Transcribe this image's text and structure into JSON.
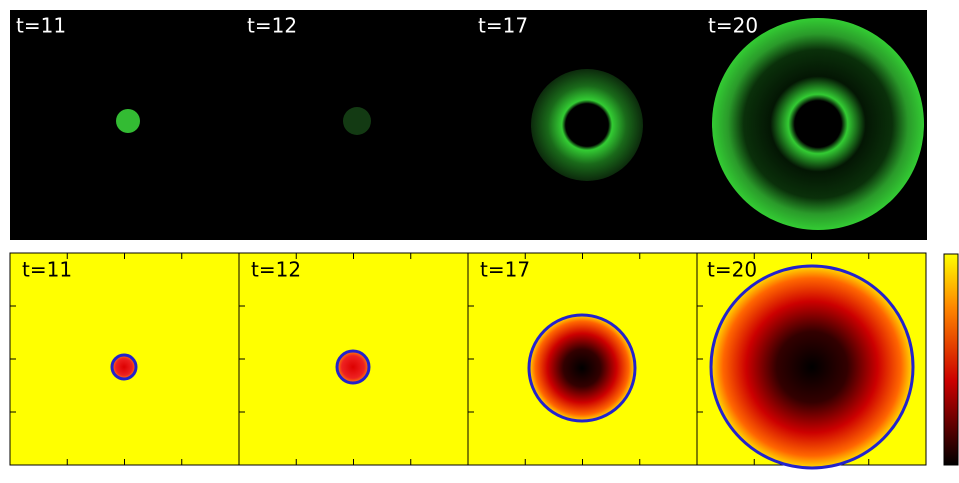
{
  "top": {
    "panels": [
      {
        "label": "t=11"
      },
      {
        "label": "t=12"
      },
      {
        "label": "t=17"
      },
      {
        "label": "t=20"
      }
    ]
  },
  "bottom": {
    "panels": [
      {
        "label": "t=11"
      },
      {
        "label": "t=12"
      },
      {
        "label": "t=17"
      },
      {
        "label": "t=20"
      }
    ]
  }
}
